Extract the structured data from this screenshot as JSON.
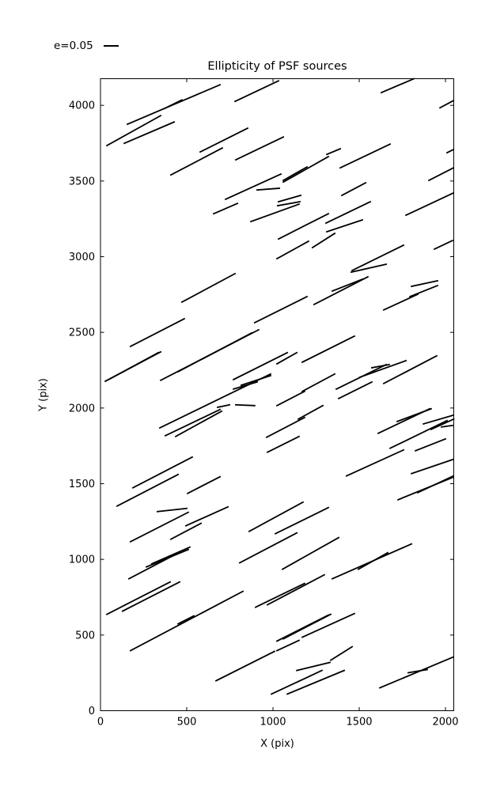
{
  "figure": {
    "background": "#ffffff",
    "line_color": "#000000"
  },
  "chart_data": {
    "type": "line_segments",
    "title": "Ellipticity of PSF sources",
    "xlabel": "X (pix)",
    "ylabel": "Y (pix)",
    "xlim": [
      0,
      2048
    ],
    "ylim": [
      0,
      4176
    ],
    "xticks": [
      "0",
      "500",
      "1000",
      "1500",
      "2000"
    ],
    "xtick_values": [
      0,
      500,
      1000,
      1500,
      2000
    ],
    "yticks": [
      "0",
      "500",
      "1000",
      "1500",
      "2000",
      "2500",
      "3000",
      "3500",
      "4000"
    ],
    "ytick_values": [
      0,
      500,
      1000,
      1500,
      2000,
      2500,
      3000,
      3500,
      4000
    ],
    "grid": false,
    "legend": {
      "label": "e=0.05",
      "position": "upper-left-outside",
      "sample": "line"
    },
    "line_color": "#000000",
    "segments": [
      [
        156,
        3875,
        693,
        4136
      ],
      [
        371,
        3979,
        472,
        4036
      ],
      [
        37,
        3734,
        349,
        3932
      ],
      [
        138,
        3749,
        427,
        3890
      ],
      [
        408,
        3540,
        706,
        3718
      ],
      [
        578,
        3692,
        853,
        3849
      ],
      [
        780,
        4026,
        1032,
        4162
      ],
      [
        784,
        3640,
        1060,
        3791
      ],
      [
        725,
        3379,
        1046,
        3546
      ],
      [
        1060,
        3504,
        1197,
        3593
      ],
      [
        1060,
        3493,
        1321,
        3661
      ],
      [
        1312,
        3676,
        1390,
        3713
      ],
      [
        1032,
        3363,
        1161,
        3405
      ],
      [
        908,
        3441,
        1037,
        3452
      ],
      [
        1628,
        4084,
        1817,
        4176
      ],
      [
        1968,
        3984,
        2046,
        4031
      ],
      [
        1390,
        3587,
        1679,
        3744
      ],
      [
        2009,
        3687,
        2046,
        3708
      ],
      [
        1399,
        3405,
        1537,
        3488
      ],
      [
        1904,
        3504,
        2046,
        3587
      ],
      [
        656,
        3284,
        794,
        3352
      ],
      [
        872,
        3232,
        1151,
        3347
      ],
      [
        1027,
        3337,
        1156,
        3363
      ],
      [
        1032,
        3117,
        1321,
        3284
      ],
      [
        1307,
        3222,
        1564,
        3363
      ],
      [
        1312,
        3165,
        1518,
        3243
      ],
      [
        1229,
        3060,
        1358,
        3154
      ],
      [
        1023,
        2987,
        1206,
        3102
      ],
      [
        472,
        2700,
        780,
        2888
      ],
      [
        894,
        2564,
        1197,
        2736
      ],
      [
        1238,
        2684,
        1550,
        2867
      ],
      [
        1344,
        2773,
        1518,
        2851
      ],
      [
        1771,
        3274,
        2046,
        3421
      ],
      [
        1936,
        3050,
        2041,
        3107
      ],
      [
        1459,
        2909,
        1757,
        3076
      ],
      [
        1454,
        2898,
        1656,
        2950
      ],
      [
        1803,
        2804,
        1954,
        2841
      ],
      [
        1794,
        2736,
        1954,
        2809
      ],
      [
        1642,
        2648,
        1840,
        2752
      ],
      [
        174,
        2407,
        486,
        2590
      ],
      [
        28,
        2177,
        349,
        2371
      ],
      [
        55,
        2193,
        335,
        2366
      ],
      [
        349,
        2183,
        917,
        2517
      ],
      [
        450,
        2240,
        876,
        2496
      ],
      [
        1023,
        2292,
        1138,
        2366
      ],
      [
        1170,
        2303,
        1472,
        2475
      ],
      [
        771,
        2188,
        1083,
        2366
      ],
      [
        816,
        2151,
        986,
        2214
      ],
      [
        771,
        2125,
        908,
        2172
      ],
      [
        344,
        1869,
        986,
        2225
      ],
      [
        376,
        1817,
        693,
        1990
      ],
      [
        436,
        1812,
        702,
        1979
      ],
      [
        784,
        2021,
        894,
        2016
      ],
      [
        679,
        2005,
        748,
        2021
      ],
      [
        1170,
        2110,
        1358,
        2225
      ],
      [
        1367,
        2125,
        1656,
        2287
      ],
      [
        1381,
        2063,
        1573,
        2172
      ],
      [
        1504,
        2204,
        1771,
        2313
      ],
      [
        1642,
        2162,
        1949,
        2345
      ],
      [
        1573,
        2266,
        1674,
        2287
      ],
      [
        1023,
        2016,
        1183,
        2110
      ],
      [
        1147,
        1927,
        1289,
        2016
      ],
      [
        963,
        1807,
        1183,
        1937
      ],
      [
        968,
        1708,
        1151,
        1812
      ],
      [
        1720,
        1911,
        1917,
        1995
      ],
      [
        1610,
        1833,
        1908,
        1995
      ],
      [
        1872,
        1895,
        2046,
        1953
      ],
      [
        1917,
        1859,
        2048,
        1927
      ],
      [
        1977,
        1875,
        2041,
        1885
      ],
      [
        1679,
        1734,
        2009,
        1917
      ],
      [
        1826,
        1718,
        2000,
        1796
      ],
      [
        1426,
        1551,
        1757,
        1723
      ],
      [
        188,
        1473,
        532,
        1676
      ],
      [
        96,
        1352,
        450,
        1561
      ],
      [
        505,
        1436,
        693,
        1546
      ],
      [
        330,
        1316,
        500,
        1337
      ],
      [
        174,
        1117,
        509,
        1311
      ],
      [
        408,
        1133,
        583,
        1238
      ],
      [
        495,
        1222,
        739,
        1347
      ],
      [
        266,
        950,
        509,
        1065
      ],
      [
        298,
        971,
        518,
        1081
      ],
      [
        165,
        872,
        463,
        1050
      ],
      [
        862,
        1185,
        1174,
        1378
      ],
      [
        1014,
        1170,
        1321,
        1342
      ],
      [
        807,
        977,
        1138,
        1175
      ],
      [
        1055,
        935,
        1381,
        1144
      ],
      [
        1803,
        1567,
        2046,
        1661
      ],
      [
        1725,
        1394,
        2041,
        1541
      ],
      [
        1839,
        1441,
        2046,
        1551
      ],
      [
        1344,
        872,
        1803,
        1102
      ],
      [
        1495,
        935,
        1665,
        1044
      ],
      [
        37,
        637,
        404,
        851
      ],
      [
        128,
        658,
        459,
        851
      ],
      [
        174,
        397,
        826,
        789
      ],
      [
        450,
        574,
        541,
        627
      ],
      [
        899,
        684,
        1183,
        841
      ],
      [
        968,
        700,
        1298,
        898
      ],
      [
        1023,
        460,
        1321,
        632
      ],
      [
        1060,
        475,
        1335,
        637
      ],
      [
        1170,
        486,
        1472,
        642
      ],
      [
        1023,
        397,
        1151,
        465
      ],
      [
        670,
        198,
        1009,
        392
      ],
      [
        1138,
        266,
        1330,
        319
      ],
      [
        991,
        110,
        1284,
        266
      ],
      [
        1083,
        110,
        1413,
        266
      ],
      [
        1335,
        334,
        1459,
        423
      ],
      [
        1619,
        151,
        2046,
        355
      ],
      [
        1784,
        251,
        1894,
        272
      ]
    ]
  }
}
